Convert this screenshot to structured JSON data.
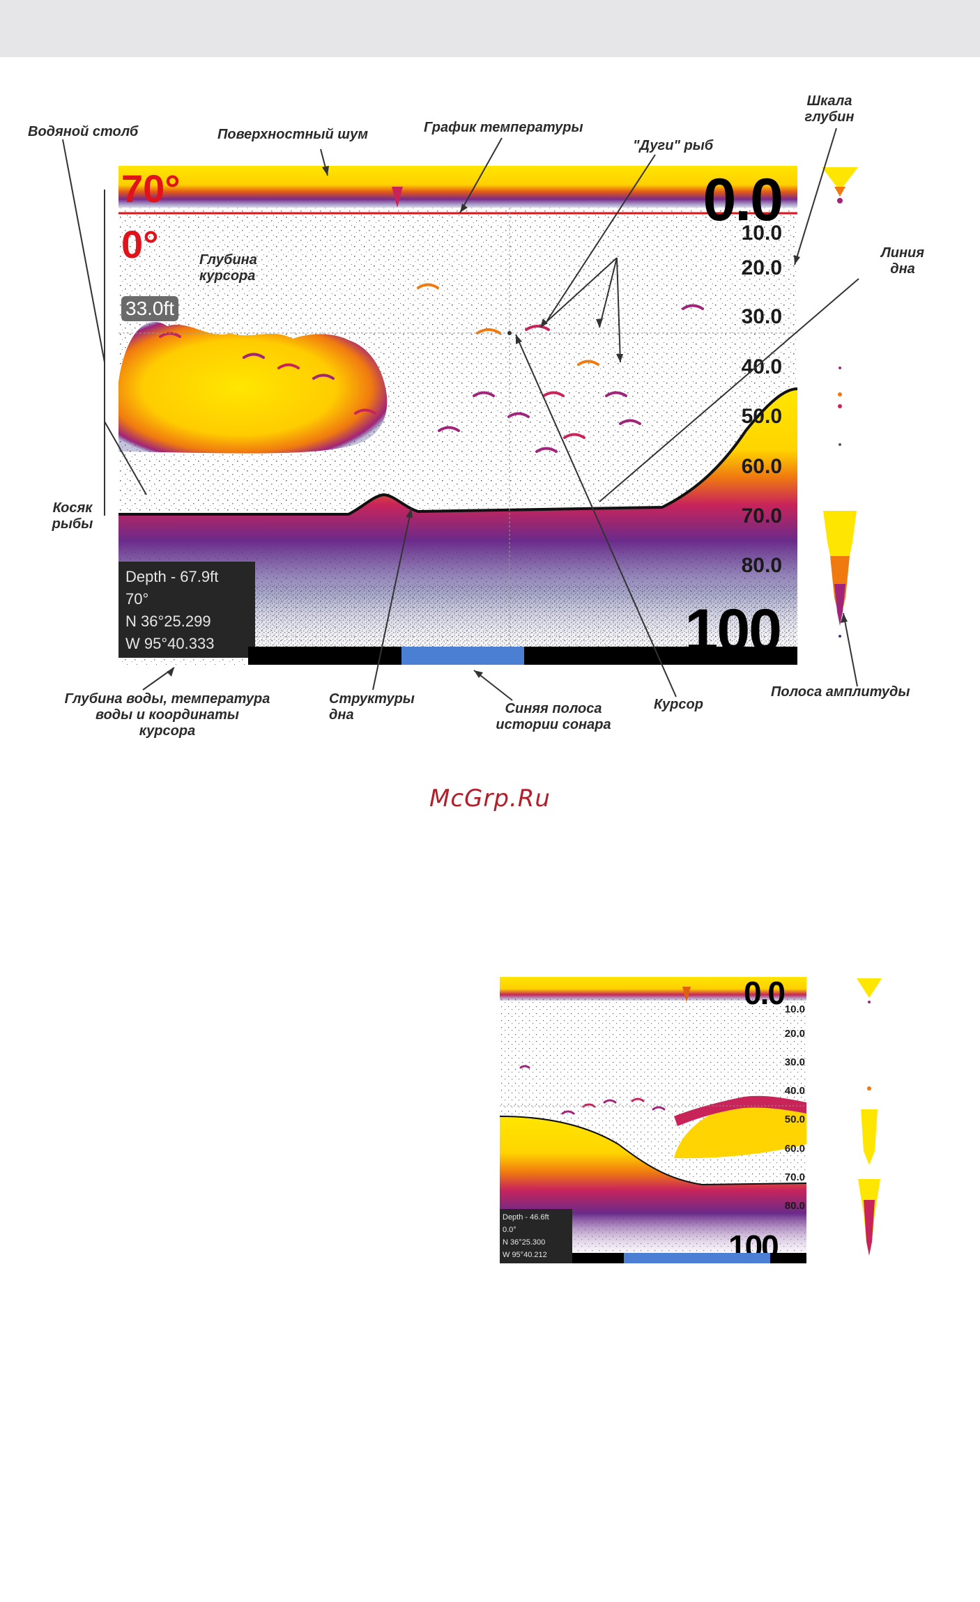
{
  "figure1": {
    "temperature_top": "70°",
    "temperature_bottom": "0°",
    "surface_depth": "0.0",
    "bottom_depth": "100",
    "cursor_depth": "33.0ft",
    "scale": [
      "10.0",
      "20.0",
      "30.0",
      "40.0",
      "50.0",
      "60.0",
      "70.0",
      "80.0"
    ],
    "info": {
      "depth": "Depth - 67.9ft",
      "temp": "70°",
      "lat": "N 36°25.299",
      "lon": "W 95°40.333"
    }
  },
  "callouts": {
    "water_column": "Водяной столб",
    "surface_clutter": "Поверхностный шум",
    "temp_graph": "График температуры",
    "fish_arches": "\"Дуги\" рыб",
    "depth_scale": "Шкала\nглубин",
    "cursor_depth": "Глубина\nкурсора",
    "bottom_line": "Линия\nдна",
    "fish_school": "Косяк\nрыбы",
    "water_info": "Глубина воды, температура\nводы и координаты\nкурсора",
    "bottom_structure": "Структуры\nдна",
    "sonar_history": "Синяя полоса\nистории сонара",
    "cursor": "Курсор",
    "amplitude_bar": "Полоса амплитуды"
  },
  "watermark": "McGrp.Ru",
  "figure2": {
    "surface_depth": "0.0",
    "bottom_depth": "100",
    "scale": [
      "10.0",
      "20.0",
      "30.0",
      "40.0",
      "50.0",
      "60.0",
      "70.0",
      "80.0"
    ],
    "info": {
      "depth": "Depth - 46.6ft",
      "temp": "0.0°",
      "lat": "N 36°25.300",
      "lon": "W 95°40.212"
    }
  },
  "colors": {
    "strong_echo": "#ffe600",
    "mid_echo": "#f07a10",
    "weak_echo": "#a0247a",
    "faint_echo": "#3a3a8a",
    "temp_red": "#e0121a",
    "history_blue": "#4a7fd4"
  }
}
